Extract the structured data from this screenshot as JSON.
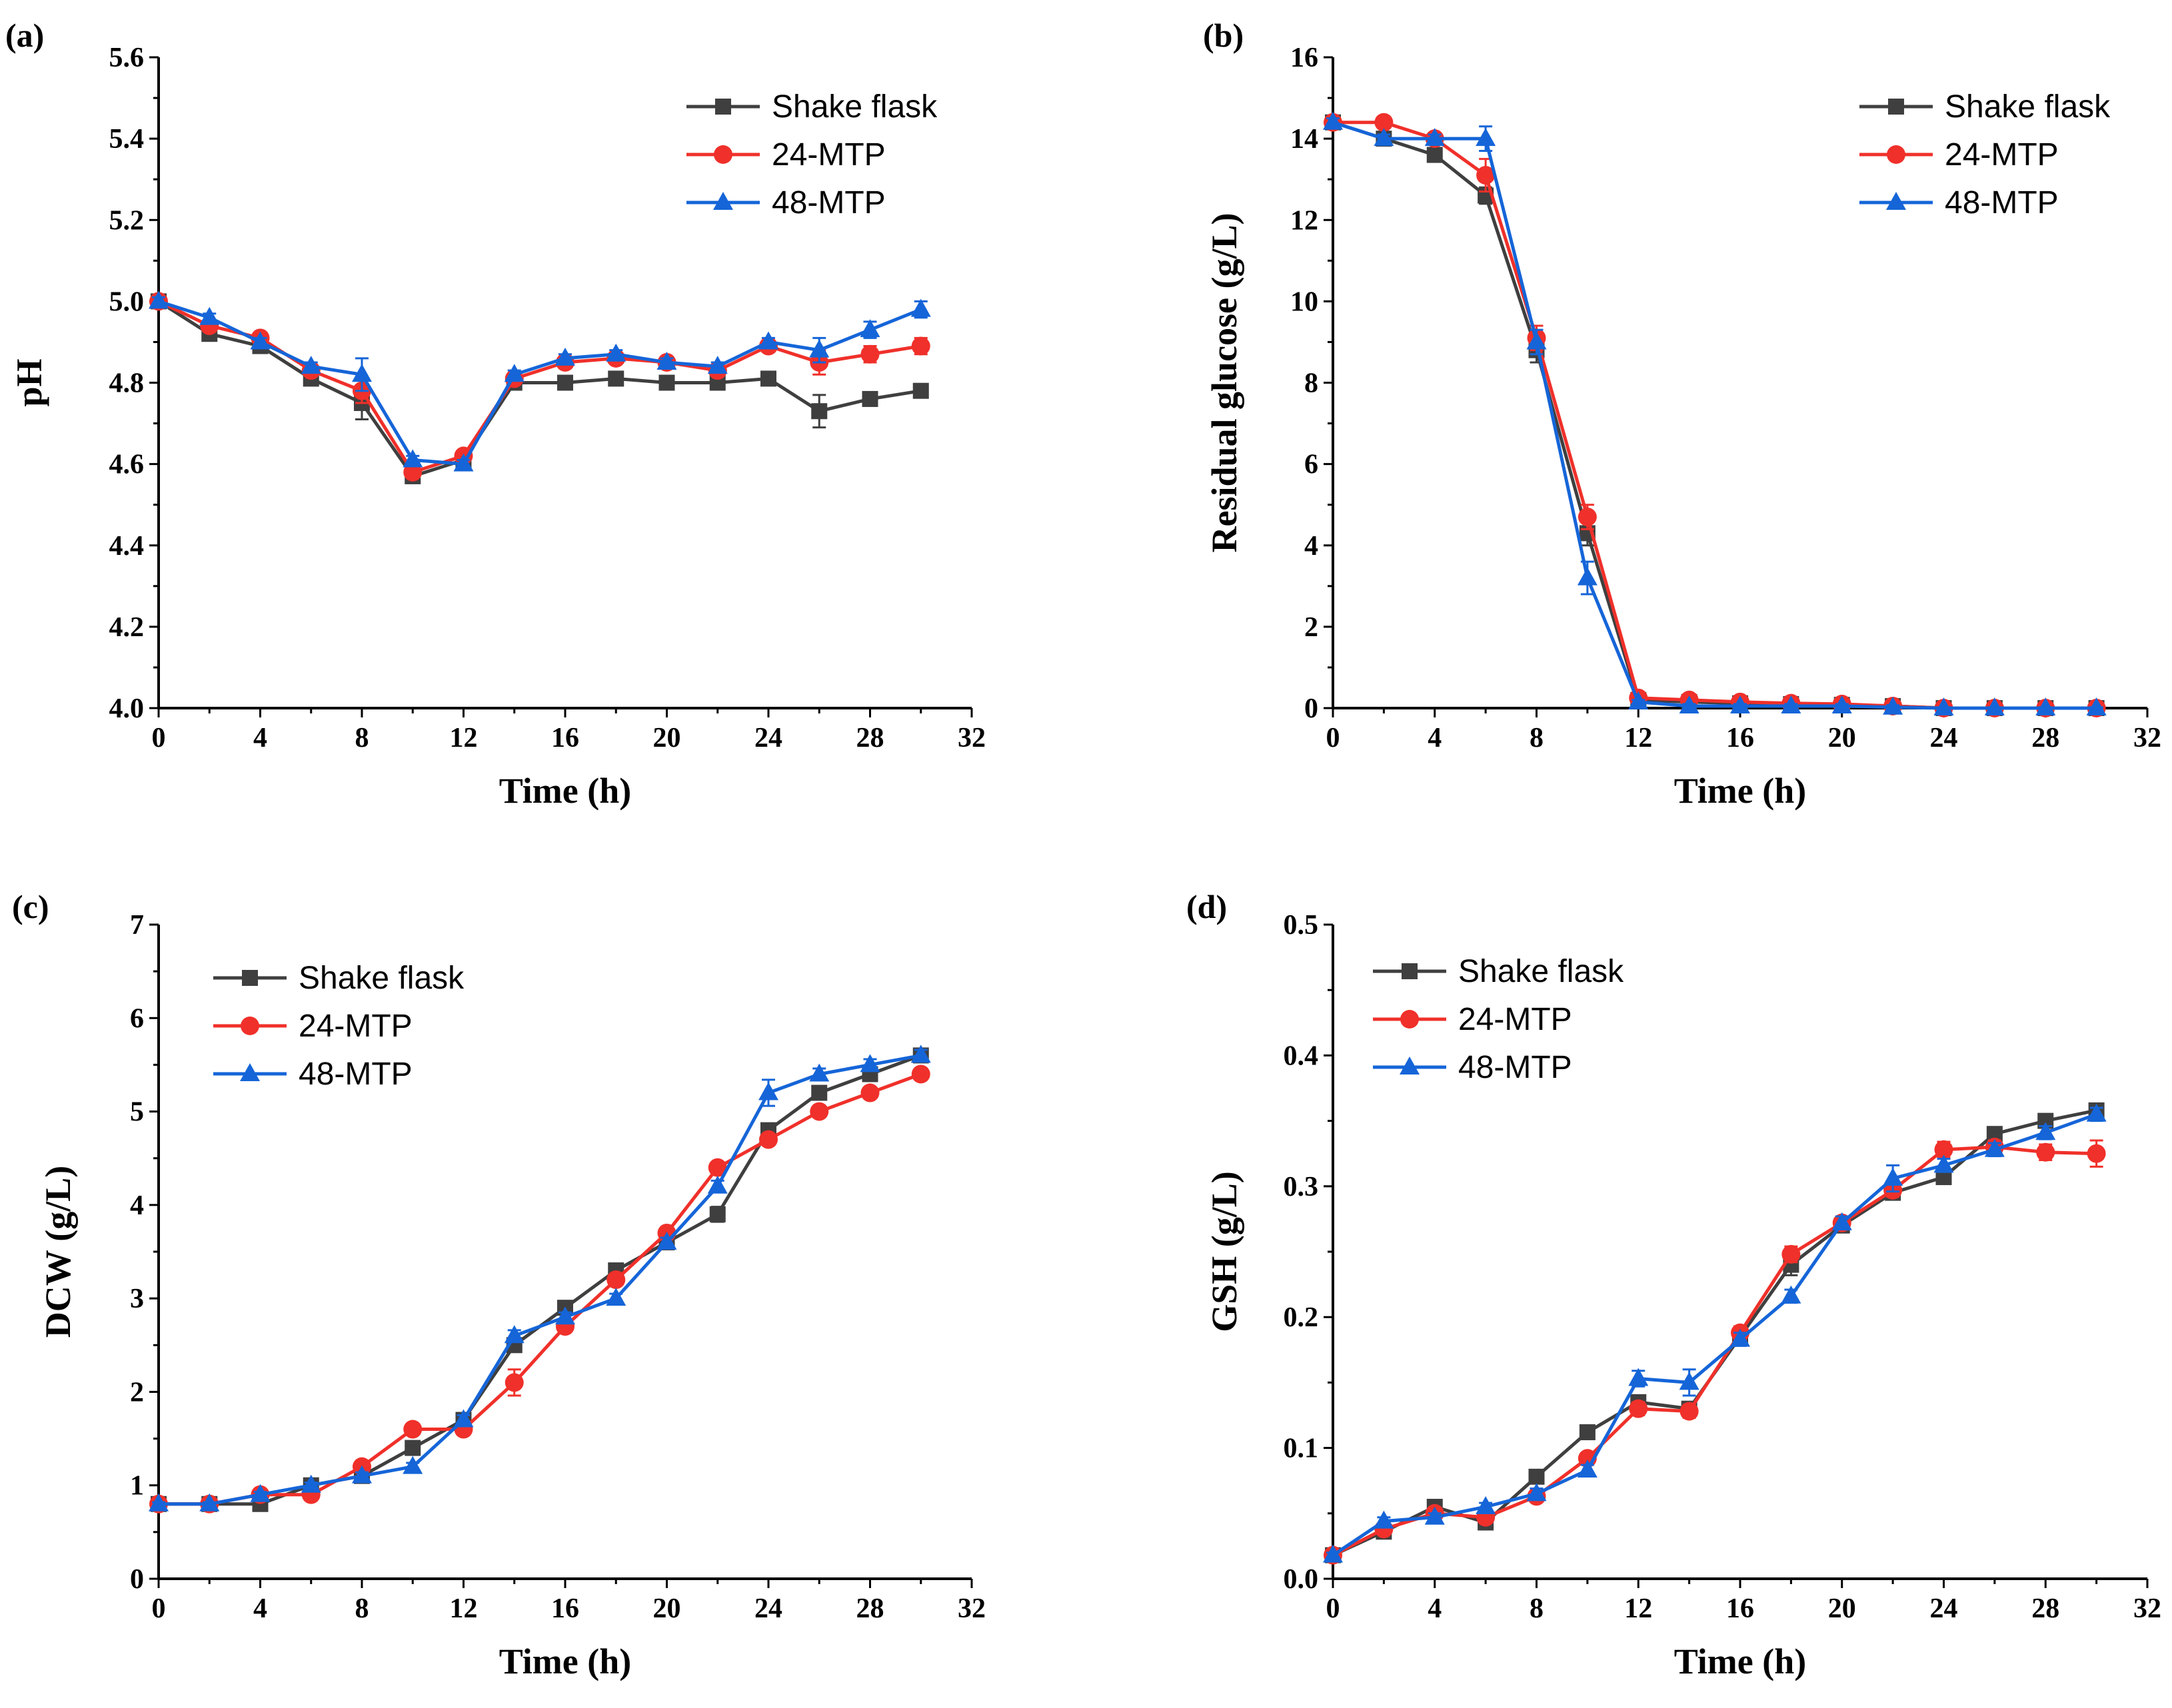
{
  "chart_data": [
    {
      "type": "line",
      "panel_label": "(a)",
      "xlabel": "Time (h)",
      "ylabel": "pH",
      "xlim": [
        0,
        32
      ],
      "ylim": [
        4.0,
        5.6
      ],
      "xticks": [
        "0",
        "4",
        "8",
        "12",
        "16",
        "20",
        "24",
        "28",
        "32"
      ],
      "yticks": [
        "4.0",
        "4.2",
        "4.4",
        "4.6",
        "4.8",
        "5.0",
        "5.2",
        "5.4",
        "5.6"
      ],
      "legend_position": "top-right",
      "x": [
        0,
        2,
        4,
        6,
        8,
        10,
        12,
        14,
        16,
        18,
        20,
        22,
        24,
        26,
        28,
        30
      ],
      "series": [
        {
          "name": "Shake flask",
          "color": "#3f3f3f",
          "marker": "square",
          "values": [
            5.0,
            4.92,
            4.89,
            4.81,
            4.75,
            4.57,
            4.61,
            4.8,
            4.8,
            4.81,
            4.8,
            4.8,
            4.81,
            4.73,
            4.76,
            4.78
          ],
          "errors": [
            0.01,
            0.01,
            0.01,
            0.01,
            0.04,
            0.01,
            0.01,
            0.01,
            0.01,
            0.01,
            0.01,
            0.01,
            0.01,
            0.04,
            0.01,
            0.01
          ]
        },
        {
          "name": "24-MTP",
          "color": "#f0302a",
          "marker": "circle",
          "values": [
            5.0,
            4.94,
            4.91,
            4.83,
            4.78,
            4.58,
            4.62,
            4.81,
            4.85,
            4.86,
            4.85,
            4.83,
            4.89,
            4.85,
            4.87,
            4.89
          ],
          "errors": [
            0.01,
            0.01,
            0.01,
            0.01,
            0.03,
            0.01,
            0.01,
            0.01,
            0.01,
            0.01,
            0.01,
            0.01,
            0.01,
            0.03,
            0.02,
            0.02
          ]
        },
        {
          "name": "48-MTP",
          "color": "#1565d8",
          "marker": "triangle",
          "values": [
            5.0,
            4.96,
            4.9,
            4.84,
            4.82,
            4.61,
            4.6,
            4.82,
            4.86,
            4.87,
            4.85,
            4.84,
            4.9,
            4.88,
            4.93,
            4.98
          ],
          "errors": [
            0.01,
            0.01,
            0.01,
            0.01,
            0.04,
            0.01,
            0.01,
            0.01,
            0.01,
            0.01,
            0.01,
            0.01,
            0.01,
            0.03,
            0.02,
            0.02
          ]
        }
      ]
    },
    {
      "type": "line",
      "panel_label": "(b)",
      "xlabel": "Time (h)",
      "ylabel": "Residual glucose (g/L)",
      "xlim": [
        0,
        32
      ],
      "ylim": [
        0,
        16
      ],
      "xticks": [
        "0",
        "4",
        "8",
        "12",
        "16",
        "20",
        "24",
        "28",
        "32"
      ],
      "yticks": [
        "0",
        "2",
        "4",
        "6",
        "8",
        "10",
        "12",
        "14",
        "16"
      ],
      "legend_position": "top-right",
      "x": [
        0,
        2,
        4,
        6,
        8,
        10,
        12,
        14,
        16,
        18,
        20,
        22,
        24,
        26,
        28,
        30
      ],
      "series": [
        {
          "name": "Shake flask",
          "color": "#3f3f3f",
          "marker": "square",
          "values": [
            14.4,
            14.0,
            13.6,
            12.6,
            8.8,
            4.3,
            0.2,
            0.15,
            0.12,
            0.1,
            0.08,
            0.05,
            0.0,
            0.0,
            0.0,
            0.0
          ],
          "errors": [
            0.1,
            0.1,
            0.1,
            0.2,
            0.3,
            0.3,
            0.05,
            0.05,
            0.05,
            0.05,
            0.05,
            0.05,
            0.02,
            0.02,
            0.02,
            0.02
          ]
        },
        {
          "name": "24-MTP",
          "color": "#f0302a",
          "marker": "circle",
          "values": [
            14.4,
            14.4,
            14.0,
            13.1,
            9.1,
            4.7,
            0.25,
            0.2,
            0.15,
            0.12,
            0.1,
            0.05,
            0.0,
            0.0,
            0.0,
            0.0
          ],
          "errors": [
            0.1,
            0.1,
            0.1,
            0.4,
            0.3,
            0.3,
            0.05,
            0.05,
            0.05,
            0.05,
            0.05,
            0.05,
            0.02,
            0.02,
            0.02,
            0.02
          ]
        },
        {
          "name": "48-MTP",
          "color": "#1565d8",
          "marker": "triangle",
          "values": [
            14.4,
            14.0,
            14.0,
            14.0,
            9.0,
            3.2,
            0.15,
            0.05,
            0.05,
            0.05,
            0.05,
            0.02,
            0.0,
            0.0,
            0.0,
            0.0
          ],
          "errors": [
            0.1,
            0.1,
            0.1,
            0.3,
            0.3,
            0.4,
            0.05,
            0.05,
            0.05,
            0.05,
            0.05,
            0.05,
            0.02,
            0.02,
            0.02,
            0.02
          ]
        }
      ]
    },
    {
      "type": "line",
      "panel_label": "(c)",
      "xlabel": "Time (h)",
      "ylabel": "DCW (g/L)",
      "xlim": [
        0,
        32
      ],
      "ylim": [
        0,
        7
      ],
      "xticks": [
        "0",
        "4",
        "8",
        "12",
        "16",
        "20",
        "24",
        "28",
        "32"
      ],
      "yticks": [
        "0",
        "1",
        "2",
        "3",
        "4",
        "5",
        "6",
        "7"
      ],
      "legend_position": "top-left",
      "x": [
        0,
        2,
        4,
        6,
        8,
        10,
        12,
        14,
        16,
        18,
        20,
        22,
        24,
        26,
        28,
        30
      ],
      "series": [
        {
          "name": "Shake flask",
          "color": "#3f3f3f",
          "marker": "square",
          "values": [
            0.8,
            0.8,
            0.8,
            1.0,
            1.1,
            1.4,
            1.7,
            2.5,
            2.9,
            3.3,
            3.6,
            3.9,
            4.8,
            5.2,
            5.4,
            5.6
          ],
          "errors": [
            0.02,
            0.02,
            0.03,
            0.03,
            0.04,
            0.04,
            0.05,
            0.06,
            0.05,
            0.05,
            0.05,
            0.08,
            0.06,
            0.06,
            0.06,
            0.06
          ]
        },
        {
          "name": "24-MTP",
          "color": "#f0302a",
          "marker": "circle",
          "values": [
            0.8,
            0.8,
            0.9,
            0.9,
            1.2,
            1.6,
            1.6,
            2.1,
            2.7,
            3.2,
            3.7,
            4.4,
            4.7,
            5.0,
            5.2,
            5.4
          ],
          "errors": [
            0.02,
            0.02,
            0.03,
            0.03,
            0.04,
            0.04,
            0.05,
            0.14,
            0.05,
            0.06,
            0.05,
            0.06,
            0.06,
            0.06,
            0.06,
            0.06
          ]
        },
        {
          "name": "48-MTP",
          "color": "#1565d8",
          "marker": "triangle",
          "values": [
            0.8,
            0.8,
            0.9,
            1.0,
            1.1,
            1.2,
            1.7,
            2.6,
            2.8,
            3.0,
            3.6,
            4.2,
            5.2,
            5.4,
            5.5,
            5.6
          ],
          "errors": [
            0.02,
            0.02,
            0.03,
            0.03,
            0.04,
            0.04,
            0.05,
            0.06,
            0.05,
            0.05,
            0.05,
            0.06,
            0.14,
            0.06,
            0.06,
            0.06
          ]
        }
      ]
    },
    {
      "type": "line",
      "panel_label": "(d)",
      "xlabel": "Time (h)",
      "ylabel": "GSH (g/L)",
      "xlim": [
        0,
        32
      ],
      "ylim": [
        0,
        0.5
      ],
      "xticks": [
        "0",
        "4",
        "8",
        "12",
        "16",
        "20",
        "24",
        "28",
        "32"
      ],
      "yticks": [
        "0.0",
        "0.1",
        "0.2",
        "0.3",
        "0.4",
        "0.5"
      ],
      "legend_position": "top-left",
      "x": [
        0,
        2,
        4,
        6,
        8,
        10,
        12,
        14,
        16,
        18,
        20,
        22,
        24,
        26,
        28,
        30
      ],
      "series": [
        {
          "name": "Shake flask",
          "color": "#3f3f3f",
          "marker": "square",
          "values": [
            0.018,
            0.036,
            0.055,
            0.043,
            0.078,
            0.112,
            0.135,
            0.13,
            0.185,
            0.24,
            0.27,
            0.295,
            0.307,
            0.34,
            0.35,
            0.358
          ],
          "errors": [
            0.002,
            0.003,
            0.003,
            0.003,
            0.004,
            0.004,
            0.005,
            0.005,
            0.005,
            0.008,
            0.005,
            0.005,
            0.005,
            0.005,
            0.005,
            0.005
          ]
        },
        {
          "name": "24-MTP",
          "color": "#f0302a",
          "marker": "circle",
          "values": [
            0.018,
            0.038,
            0.05,
            0.047,
            0.063,
            0.092,
            0.13,
            0.128,
            0.188,
            0.248,
            0.272,
            0.297,
            0.328,
            0.33,
            0.326,
            0.325
          ],
          "errors": [
            0.002,
            0.003,
            0.003,
            0.003,
            0.004,
            0.004,
            0.005,
            0.005,
            0.005,
            0.006,
            0.005,
            0.005,
            0.006,
            0.005,
            0.006,
            0.01
          ]
        },
        {
          "name": "48-MTP",
          "color": "#1565d8",
          "marker": "triangle",
          "values": [
            0.018,
            0.044,
            0.047,
            0.055,
            0.065,
            0.083,
            0.153,
            0.15,
            0.183,
            0.216,
            0.272,
            0.306,
            0.316,
            0.328,
            0.341,
            0.355
          ],
          "errors": [
            0.002,
            0.003,
            0.003,
            0.003,
            0.004,
            0.004,
            0.006,
            0.01,
            0.005,
            0.005,
            0.005,
            0.01,
            0.005,
            0.005,
            0.005,
            0.005
          ]
        }
      ]
    }
  ]
}
